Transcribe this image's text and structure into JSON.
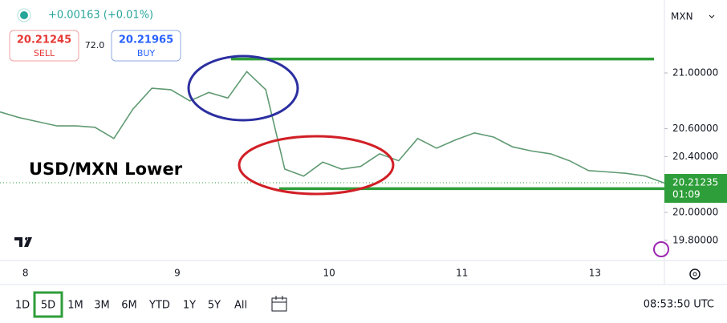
{
  "header": {
    "change": "+0.00163 (+0.01%)",
    "sell_price": "20.21245",
    "sell_label": "SELL",
    "spread": "72.0",
    "buy_price": "20.21965",
    "buy_label": "BUY",
    "currency": "MXN"
  },
  "chart_data": {
    "type": "line",
    "annotation": "USD/MXN Lower",
    "categories": [
      null,
      "8",
      null,
      null,
      null,
      null,
      null,
      null,
      null,
      "9",
      null,
      null,
      null,
      null,
      null,
      null,
      null,
      "10",
      null,
      null,
      null,
      null,
      null,
      null,
      "11",
      null,
      null,
      null,
      null,
      null,
      null,
      "13",
      null,
      null,
      null,
      null
    ],
    "values": [
      20.72,
      20.68,
      20.65,
      20.62,
      20.62,
      20.61,
      20.53,
      20.74,
      20.89,
      20.88,
      20.8,
      20.86,
      20.82,
      21.01,
      20.88,
      20.31,
      20.26,
      20.36,
      20.31,
      20.33,
      20.42,
      20.37,
      20.53,
      20.46,
      20.52,
      20.57,
      20.54,
      20.47,
      20.44,
      20.42,
      20.37,
      20.3,
      20.29,
      20.28,
      20.26,
      20.21
    ],
    "color": "#5f9a72",
    "ylim": [
      19.655,
      21.523
    ],
    "yticks": [
      {
        "value": 19.8,
        "label": "19.80000"
      },
      {
        "value": 20.0,
        "label": "20.00000"
      },
      {
        "value": 20.4,
        "label": "20.40000"
      },
      {
        "value": 20.6,
        "label": "20.60000"
      },
      {
        "value": 21.0,
        "label": "21.00000"
      }
    ],
    "levels": [
      21.1,
      20.17
    ],
    "level_color": "#2e9e3a",
    "last_price": 20.21235,
    "countdown": "01:09",
    "last_price_color": "#2e9e3a"
  },
  "toolbar": {
    "ranges": [
      "1D",
      "5D",
      "1M",
      "3M",
      "6M",
      "YTD",
      "1Y",
      "5Y",
      "All"
    ],
    "selected": 1,
    "time": "08:53:50 UTC"
  }
}
